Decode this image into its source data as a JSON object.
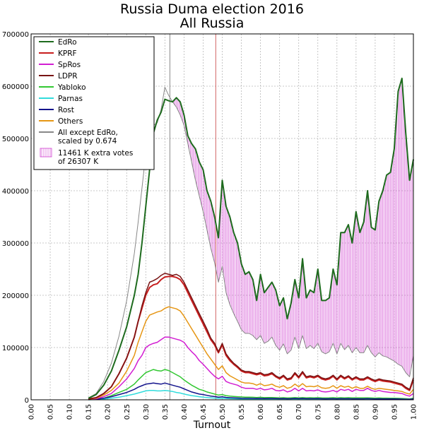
{
  "chart_data": {
    "type": "line",
    "title": "Russia Duma election 2016",
    "subtitle": "All Russia",
    "xlabel": "Turnout",
    "ylabel": "",
    "xlim": [
      0.0,
      1.0
    ],
    "ylim": [
      0,
      700000
    ],
    "grid": true,
    "legend_position": "top-left",
    "x_ticks": [
      "0.00",
      "0.05",
      "0.10",
      "0.15",
      "0.20",
      "0.25",
      "0.30",
      "0.35",
      "0.40",
      "0.45",
      "0.50",
      "0.55",
      "0.60",
      "0.65",
      "0.70",
      "0.75",
      "0.80",
      "0.85",
      "0.90",
      "0.95",
      "1.00"
    ],
    "y_ticks": [
      "0",
      "100000",
      "200000",
      "300000",
      "400000",
      "500000",
      "600000",
      "700000"
    ],
    "vlines": [
      {
        "x": 0.363,
        "color": "#888888"
      },
      {
        "x": 0.483,
        "color": "#d06060"
      }
    ],
    "x": [
      0.15,
      0.17,
      0.19,
      0.21,
      0.23,
      0.25,
      0.27,
      0.28,
      0.29,
      0.3,
      0.31,
      0.32,
      0.33,
      0.34,
      0.35,
      0.36,
      0.37,
      0.38,
      0.39,
      0.4,
      0.41,
      0.42,
      0.43,
      0.44,
      0.45,
      0.46,
      0.47,
      0.48,
      0.49,
      0.5,
      0.51,
      0.52,
      0.53,
      0.54,
      0.55,
      0.56,
      0.57,
      0.58,
      0.59,
      0.6,
      0.61,
      0.62,
      0.63,
      0.64,
      0.65,
      0.66,
      0.67,
      0.68,
      0.69,
      0.7,
      0.71,
      0.72,
      0.73,
      0.74,
      0.75,
      0.76,
      0.77,
      0.78,
      0.79,
      0.8,
      0.81,
      0.82,
      0.83,
      0.84,
      0.85,
      0.86,
      0.87,
      0.88,
      0.89,
      0.9,
      0.91,
      0.92,
      0.93,
      0.94,
      0.95,
      0.96,
      0.97,
      0.98,
      0.99,
      1.0
    ],
    "series": [
      {
        "name": "EdRo",
        "color": "#1e6b1e",
        "width": 2,
        "values": [
          3000,
          10000,
          28000,
          55000,
          95000,
          140000,
          200000,
          240000,
          300000,
          370000,
          440000,
          510000,
          535000,
          550000,
          575000,
          572000,
          570000,
          578000,
          570000,
          545000,
          505000,
          490000,
          480000,
          455000,
          440000,
          400000,
          380000,
          350000,
          310000,
          420000,
          370000,
          350000,
          320000,
          300000,
          260000,
          240000,
          245000,
          230000,
          190000,
          240000,
          205000,
          215000,
          225000,
          210000,
          180000,
          195000,
          155000,
          185000,
          230000,
          195000,
          270000,
          195000,
          210000,
          205000,
          250000,
          190000,
          190000,
          195000,
          250000,
          220000,
          320000,
          320000,
          335000,
          300000,
          360000,
          320000,
          340000,
          400000,
          330000,
          325000,
          380000,
          400000,
          430000,
          435000,
          480000,
          590000,
          615000,
          510000,
          420000,
          460000
        ]
      },
      {
        "name": "KPRF",
        "color": "#c81e1e",
        "width": 2,
        "values": [
          1500,
          4000,
          12000,
          25000,
          50000,
          80000,
          120000,
          150000,
          175000,
          200000,
          215000,
          220000,
          222000,
          230000,
          235000,
          236000,
          236000,
          234000,
          230000,
          220000,
          205000,
          190000,
          175000,
          160000,
          145000,
          130000,
          115000,
          105000,
          90000,
          105000,
          85000,
          75000,
          68000,
          62000,
          55000,
          52000,
          52000,
          50000,
          48000,
          50000,
          46000,
          47000,
          50000,
          44000,
          40000,
          45000,
          38000,
          40000,
          50000,
          42000,
          52000,
          42000,
          44000,
          42000,
          45000,
          40000,
          38000,
          40000,
          45000,
          38000,
          45000,
          40000,
          44000,
          38000,
          42000,
          38000,
          38000,
          42000,
          38000,
          35000,
          38000,
          36000,
          35000,
          34000,
          32000,
          30000,
          28000,
          22000,
          18000,
          38000
        ]
      },
      {
        "name": "SpRos",
        "color": "#d21ed2",
        "width": 1.5,
        "values": [
          500,
          2000,
          6000,
          12000,
          25000,
          40000,
          60000,
          75000,
          85000,
          100000,
          105000,
          108000,
          110000,
          115000,
          120000,
          120000,
          118000,
          116000,
          114000,
          110000,
          100000,
          92000,
          85000,
          75000,
          68000,
          60000,
          52000,
          45000,
          40000,
          45000,
          35000,
          32000,
          30000,
          28000,
          24000,
          22000,
          22000,
          22000,
          20000,
          22000,
          19000,
          20000,
          22000,
          18000,
          17000,
          19000,
          15000,
          17000,
          22000,
          17000,
          22000,
          17000,
          18000,
          17000,
          19000,
          16000,
          15000,
          16000,
          18000,
          15000,
          20000,
          18000,
          20000,
          16000,
          20000,
          18000,
          18000,
          22000,
          18000,
          16000,
          18000,
          16000,
          15000,
          14000,
          14000,
          13000,
          12000,
          9000,
          7000,
          12000
        ]
      },
      {
        "name": "LDPR",
        "color": "#781414",
        "width": 1.5,
        "values": [
          1500,
          4000,
          12000,
          25000,
          50000,
          80000,
          120000,
          150000,
          180000,
          205000,
          225000,
          228000,
          232000,
          238000,
          242000,
          240000,
          238000,
          240000,
          236000,
          225000,
          210000,
          195000,
          180000,
          165000,
          150000,
          135000,
          118000,
          108000,
          92000,
          108000,
          88000,
          78000,
          70000,
          64000,
          57000,
          54000,
          54000,
          52000,
          50000,
          52000,
          48000,
          49000,
          52000,
          46000,
          42000,
          47000,
          40000,
          42000,
          52000,
          44000,
          54000,
          44000,
          46000,
          44000,
          47000,
          42000,
          40000,
          42000,
          47000,
          40000,
          47000,
          42000,
          46000,
          40000,
          44000,
          40000,
          40000,
          44000,
          40000,
          37000,
          40000,
          38000,
          37000,
          36000,
          34000,
          32000,
          30000,
          24000,
          20000,
          42000
        ]
      },
      {
        "name": "Yabloko",
        "color": "#32c832",
        "width": 1.5,
        "values": [
          200,
          800,
          3000,
          8000,
          14000,
          20000,
          30000,
          38000,
          45000,
          52000,
          55000,
          58000,
          56000,
          55000,
          58000,
          56000,
          52000,
          48000,
          44000,
          38000,
          33000,
          28000,
          24000,
          20000,
          18000,
          15000,
          13000,
          11000,
          9000,
          10000,
          8000,
          7000,
          6500,
          6000,
          5500,
          5000,
          5000,
          4800,
          4500,
          4800,
          4200,
          4300,
          4500,
          4000,
          3800,
          4000,
          3500,
          3800,
          4200,
          3800,
          4200,
          3800,
          4000,
          3800,
          4000,
          3600,
          3500,
          3600,
          4000,
          3500,
          4000,
          3800,
          4000,
          3600,
          3800,
          3600,
          3600,
          3800,
          3500,
          3300,
          3500,
          3300,
          3200,
          3100,
          3000,
          2800,
          2600,
          2100,
          1800,
          3000
        ]
      },
      {
        "name": "Parnas",
        "color": "#32dcdc",
        "width": 1.5,
        "values": [
          100,
          400,
          1500,
          3000,
          5000,
          8000,
          11000,
          13000,
          15000,
          17000,
          18000,
          18000,
          17000,
          17000,
          18000,
          17000,
          16000,
          14000,
          13000,
          11000,
          9500,
          8000,
          7000,
          6000,
          5200,
          4500,
          3800,
          3200,
          2800,
          3000,
          2500,
          2200,
          2000,
          1900,
          1700,
          1600,
          1600,
          1500,
          1400,
          1500,
          1300,
          1400,
          1400,
          1300,
          1200,
          1300,
          1100,
          1200,
          1300,
          1200,
          1300,
          1200,
          1200,
          1200,
          1300,
          1100,
          1100,
          1100,
          1200,
          1100,
          1200,
          1100,
          1200,
          1100,
          1100,
          1100,
          1100,
          1200,
          1100,
          1000,
          1100,
          1000,
          1000,
          950,
          900,
          850,
          800,
          650,
          550,
          900
        ]
      },
      {
        "name": "Rost",
        "color": "#14148c",
        "width": 1.5,
        "values": [
          200,
          1000,
          3000,
          6000,
          10000,
          14000,
          20000,
          24000,
          27000,
          30000,
          31000,
          32000,
          31000,
          30000,
          32000,
          30000,
          28000,
          26000,
          24000,
          21000,
          18000,
          15000,
          13000,
          11000,
          10000,
          8500,
          7200,
          6200,
          5200,
          5800,
          4600,
          4000,
          3700,
          3400,
          3000,
          2800,
          2800,
          2700,
          2500,
          2700,
          2400,
          2500,
          2600,
          2300,
          2200,
          2300,
          2000,
          2100,
          2500,
          2100,
          2500,
          2100,
          2200,
          2100,
          2300,
          2000,
          1900,
          2000,
          2200,
          1900,
          2200,
          2000,
          2100,
          1900,
          2000,
          1900,
          1900,
          2100,
          1900,
          1800,
          1900,
          1800,
          1700,
          1700,
          1600,
          1500,
          1400,
          1100,
          900,
          1600
        ]
      },
      {
        "name": "Others",
        "color": "#e69614",
        "width": 1.5,
        "values": [
          800,
          3000,
          9000,
          18000,
          32000,
          55000,
          85000,
          110000,
          130000,
          150000,
          162000,
          165000,
          168000,
          170000,
          175000,
          178000,
          176000,
          174000,
          170000,
          160000,
          148000,
          136000,
          124000,
          112000,
          100000,
          88000,
          78000,
          68000,
          58000,
          65000,
          52000,
          46000,
          42000,
          38000,
          34000,
          32000,
          32000,
          31000,
          28000,
          31000,
          27000,
          28000,
          30000,
          26000,
          24000,
          27000,
          22000,
          24000,
          30000,
          25000,
          31000,
          25000,
          26000,
          25000,
          27000,
          23000,
          22000,
          23000,
          27000,
          22000,
          27000,
          24000,
          26000,
          22000,
          25000,
          22000,
          22000,
          26000,
          22000,
          20000,
          22000,
          21000,
          20000,
          19000,
          18000,
          17000,
          16000,
          13000,
          11000,
          20000
        ]
      },
      {
        "name": "All except EdRo,\nscaled by 0.674",
        "color": "#888888",
        "width": 1,
        "values": [
          3500,
          12000,
          35000,
          70000,
          122000,
          190000,
          280000,
          340000,
          405000,
          470000,
          510000,
          525000,
          530000,
          555000,
          598000,
          582000,
          570000,
          560000,
          545000,
          525000,
          490000,
          455000,
          420000,
          390000,
          360000,
          325000,
          290000,
          262000,
          225000,
          255000,
          205000,
          182000,
          165000,
          150000,
          134000,
          127000,
          127000,
          123000,
          115000,
          123000,
          108000,
          112000,
          120000,
          104000,
          95000,
          107000,
          88000,
          95000,
          120000,
          98000,
          123000,
          98000,
          104000,
          98000,
          108000,
          92000,
          88000,
          92000,
          108000,
          88000,
          108000,
          96000,
          104000,
          90000,
          100000,
          90000,
          90000,
          104000,
          90000,
          82000,
          90000,
          84000,
          82000,
          78000,
          74000,
          68000,
          64000,
          52000,
          44000,
          84000
        ]
      }
    ],
    "fill_between": {
      "upper": "EdRo",
      "lower": "All except EdRo,\nscaled by 0.674",
      "color": "#d040d0",
      "style": "vertical-hatch"
    },
    "legend": [
      {
        "label": "EdRo",
        "color": "#1e6b1e",
        "kind": "line"
      },
      {
        "label": "KPRF",
        "color": "#c81e1e",
        "kind": "line"
      },
      {
        "label": "SpRos",
        "color": "#d21ed2",
        "kind": "line"
      },
      {
        "label": "LDPR",
        "color": "#781414",
        "kind": "line"
      },
      {
        "label": "Yabloko",
        "color": "#32c832",
        "kind": "line"
      },
      {
        "label": "Parnas",
        "color": "#32dcdc",
        "kind": "line"
      },
      {
        "label": "Rost",
        "color": "#14148c",
        "kind": "line"
      },
      {
        "label": "Others",
        "color": "#e69614",
        "kind": "line"
      },
      {
        "label": "All except EdRo,",
        "label2": "scaled by 0.674",
        "color": "#888888",
        "kind": "line"
      },
      {
        "label": "11461 K extra votes",
        "label2": " of 26307 K",
        "color": "#d040d0",
        "kind": "patch"
      }
    ]
  }
}
